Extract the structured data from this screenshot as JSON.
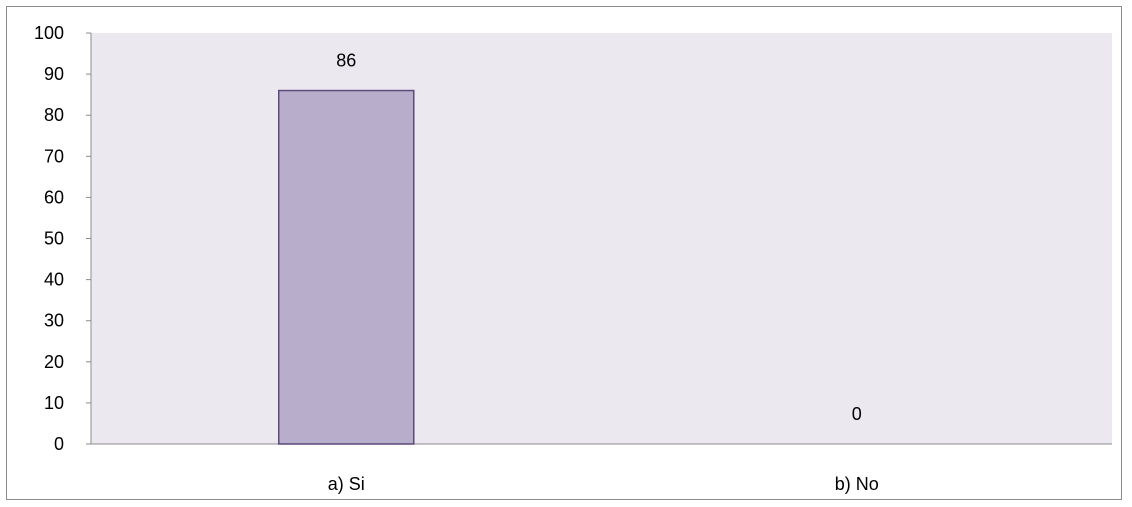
{
  "chart_data": {
    "type": "bar",
    "title": "",
    "xlabel": "",
    "ylabel": "",
    "categories": [
      "a) Si",
      "b) No"
    ],
    "values": [
      86,
      0
    ],
    "data_labels": [
      "86",
      "0"
    ],
    "ylim": [
      0,
      100
    ],
    "yticks": [
      "0",
      "10",
      "20",
      "30",
      "40",
      "50",
      "60",
      "70",
      "80",
      "90",
      "100"
    ],
    "grid": false,
    "legend": "none",
    "colors": {
      "plot_background": "#ebe8ef",
      "bar_fill": "#b8aecb",
      "bar_stroke": "#5b4a7a",
      "axis": "#8c8c8c"
    }
  }
}
